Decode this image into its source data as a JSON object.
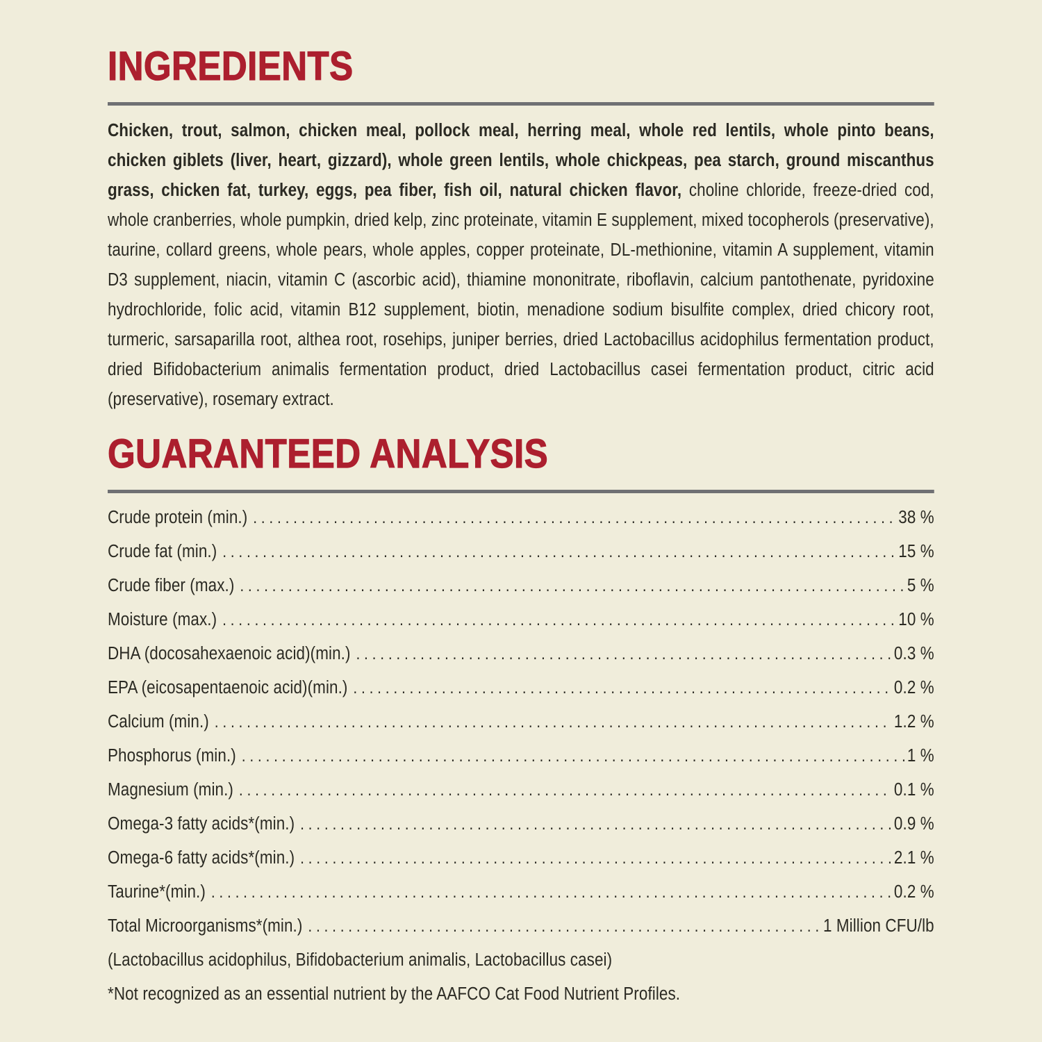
{
  "page": {
    "background_color": "#F0EDDB",
    "text_color": "#2B2A23",
    "accent_color": "#AC1F2E",
    "divider_color": "#6F7073"
  },
  "ingredients": {
    "title": "INGREDIENTS",
    "bold_text": "Chicken, trout, salmon, chicken meal, pollock meal, herring meal, whole red lentils, whole pinto beans, chicken giblets (liver, heart, gizzard), whole green lentils, whole chickpeas, pea starch, ground miscanthus grass, chicken fat, turkey, eggs, pea fiber, fish oil, natural chicken flavor,",
    "regular_text": " choline chloride, freeze-dried cod, whole cranberries, whole pumpkin, dried kelp, zinc proteinate, vitamin E supplement, mixed tocopherols (preservative), taurine, collard greens, whole pears, whole apples, copper proteinate, DL-methionine, vitamin A supplement, vitamin D3 supplement, niacin, vitamin C (ascorbic acid), thiamine mononitrate, riboflavin, calcium pantothenate, pyridoxine hydrochloride, folic acid, vitamin B12 supplement, biotin, menadione sodium bisulfite complex, dried chicory root, turmeric, sarsaparilla root, althea root, rosehips, juniper berries, dried Lactobacillus acidophilus fermentation product, dried Bifidobacterium animalis fermentation product, dried Lactobacillus casei fermentation product, citric acid (preservative), rosemary extract."
  },
  "guaranteed_analysis": {
    "title": "GUARANTEED ANALYSIS",
    "rows": [
      {
        "label": "Crude protein (min.)",
        "value": "38 %"
      },
      {
        "label": "Crude fat (min.)",
        "value": "15 %"
      },
      {
        "label": "Crude fiber (max.)",
        "value": "5 %"
      },
      {
        "label": "Moisture (max.)",
        "value": "10 %"
      },
      {
        "label": "DHA (docosahexaenoic acid)(min.)",
        "value": "0.3 %"
      },
      {
        "label": "EPA (eicosapentaenoic acid)(min.)",
        "value": "0.2 %"
      },
      {
        "label": "Calcium (min.)",
        "value": "1.2 %"
      },
      {
        "label": "Phosphorus (min.)",
        "value": "1 %"
      },
      {
        "label": "Magnesium (min.)",
        "value": "0.1 %"
      },
      {
        "label": "Omega-3 fatty acids*(min.)",
        "value": "0.9 %"
      },
      {
        "label": "Omega-6 fatty acids*(min.)",
        "value": "2.1 %"
      },
      {
        "label": "Taurine*(min.)",
        "value": "0.2 %"
      },
      {
        "label": "Total Microorganisms*(min.)",
        "value": "1 Million CFU/lb"
      }
    ],
    "footnotes": [
      "(Lactobacillus acidophilus, Bifidobacterium animalis, Lactobacillus casei)",
      "*Not recognized as an essential nutrient by the AAFCO Cat Food Nutrient Profiles."
    ]
  }
}
